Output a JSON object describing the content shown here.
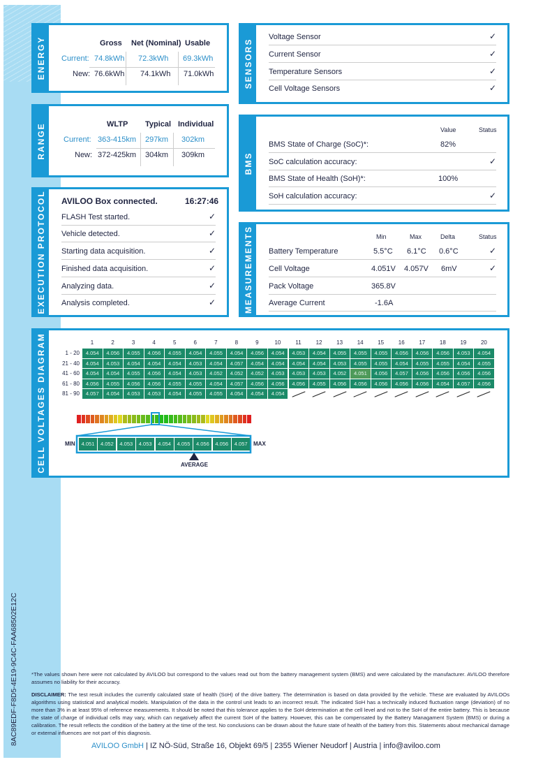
{
  "document_id": "8AC89EDF-F8D5-4E19-9C4C-FAA68502E12C",
  "energy": {
    "title": "ENERGY",
    "headers": [
      "Gross",
      "Net (Nominal)",
      "Usable"
    ],
    "current_label": "Current:",
    "new_label": "New:",
    "current": [
      "74.8kWh",
      "72.3kWh",
      "69.3kWh"
    ],
    "new": [
      "76.6kWh",
      "74.1kWh",
      "71.0kWh"
    ]
  },
  "range": {
    "title": "RANGE",
    "headers": [
      "WLTP",
      "Typical",
      "Individual"
    ],
    "current_label": "Current:",
    "new_label": "New:",
    "current": [
      "363-415km",
      "297km",
      "302km"
    ],
    "new": [
      "372-425km",
      "304km",
      "309km"
    ]
  },
  "sensors": {
    "title": "SENSORS",
    "items": [
      "Voltage Sensor",
      "Current Sensor",
      "Temperature Sensors",
      "Cell Voltage Sensors"
    ]
  },
  "bms": {
    "title": "BMS",
    "value_header": "Value",
    "status_header": "Status",
    "rows": [
      {
        "label": "BMS State of Charge (SoC)*:",
        "value": "82%",
        "ok": false
      },
      {
        "label": "SoC calculation accuracy:",
        "value": "",
        "ok": true
      },
      {
        "label": "BMS State of Health (SoH)*:",
        "value": "100%",
        "ok": false
      },
      {
        "label": "SoH calculation accuracy:",
        "value": "",
        "ok": true
      }
    ]
  },
  "protocol": {
    "title": "EXECUTION PROTOCOL",
    "header": "AVILOO Box connected.",
    "time": "16:27:46",
    "steps": [
      "FLASH Test started.",
      "Vehicle detected.",
      "Starting data acquisition.",
      "Finished data acquisition.",
      "Analyzing data.",
      "Analysis completed."
    ]
  },
  "measurements": {
    "title": "MEASUREMENTS",
    "headers": [
      "Min",
      "Max",
      "Delta",
      "Status"
    ],
    "rows": [
      {
        "label": "Battery Temperature",
        "min": "5.5°C",
        "max": "6.1°C",
        "delta": "0.6°C",
        "ok": true
      },
      {
        "label": "Cell Voltage",
        "min": "4.051V",
        "max": "4.057V",
        "delta": "6mV",
        "ok": true
      },
      {
        "label": "Pack Voltage",
        "min": "365.8V",
        "max": "",
        "delta": "",
        "ok": false
      },
      {
        "label": "Average Current",
        "min": "-1.6A",
        "max": "",
        "delta": "",
        "ok": false
      }
    ]
  },
  "cells": {
    "title": "CELL VOLTAGES DIAGRAM",
    "columns": [
      "1",
      "2",
      "3",
      "4",
      "5",
      "6",
      "7",
      "8",
      "9",
      "10",
      "11",
      "12",
      "13",
      "14",
      "15",
      "16",
      "17",
      "18",
      "19",
      "20"
    ],
    "row_labels": [
      "1 - 20",
      "21 - 40",
      "41 - 60",
      "61 - 80",
      "81 - 90"
    ],
    "rows": [
      [
        "4.054",
        "4.056",
        "4.055",
        "4.056",
        "4.055",
        "4.054",
        "4.055",
        "4.054",
        "4.056",
        "4.054",
        "4.053",
        "4.054",
        "4.055",
        "4.055",
        "4.055",
        "4.056",
        "4.056",
        "4.056",
        "4.053",
        "4.054"
      ],
      [
        "4.054",
        "4.053",
        "4.054",
        "4.054",
        "4.054",
        "4.053",
        "4.054",
        "4.057",
        "4.054",
        "4.054",
        "4.054",
        "4.054",
        "4.053",
        "4.055",
        "4.055",
        "4.054",
        "4.055",
        "4.055",
        "4.054",
        "4.055"
      ],
      [
        "4.054",
        "4.054",
        "4.055",
        "4.056",
        "4.054",
        "4.053",
        "4.052",
        "4.052",
        "4.052",
        "4.053",
        "4.053",
        "4.053",
        "4.052",
        "4.051",
        "4.056",
        "4.057",
        "4.056",
        "4.056",
        "4.056",
        "4.056"
      ],
      [
        "4.056",
        "4.055",
        "4.056",
        "4.056",
        "4.055",
        "4.055",
        "4.054",
        "4.057",
        "4.056",
        "4.056",
        "4.056",
        "4.055",
        "4.056",
        "4.056",
        "4.056",
        "4.056",
        "4.056",
        "4.054",
        "4.057",
        "4.056"
      ],
      [
        "4.057",
        "4.054",
        "4.053",
        "4.053",
        "4.054",
        "4.055",
        "4.055",
        "4.054",
        "4.054",
        "4.054"
      ]
    ],
    "scale_min_label": "MIN",
    "scale_max_label": "MAX",
    "average_label": "AVERAGE",
    "scale": [
      "4.051",
      "4.052",
      "4.053",
      "4.053",
      "4.054",
      "4.055",
      "4.056",
      "4.056",
      "4.057"
    ]
  },
  "footnote": "*The values shown here were not calculated by AVILOO but correspond to the values read out from the battery management system (BMS) and were calculated by the manufacturer. AVILOO therefore assumes no liability for their accuracy.",
  "disclaimer_label": "DISCLAIMER:",
  "disclaimer": " The test result includes the currently calculated state of health (SoH) of the drive battery. The determination is based on data provided by the vehicle. These are evaluated by AVILOOs algorithms using statistical and analytical models. Manipulation of the data in the control unit leads to an incorrect result. The indicated SoH has a technically induced fluctuation range (deviation) of no more than 3% in at least 95% of reference measurements. It should be noted that this tolerance applies to the SoH determination at the cell level and not to the SoH of the entire battery. This is because the state of charge of individual cells may vary, which can negatively affect the current SoH of the battery. However, this can be compensated by the Battery Managament System (BMS) or during a calibration. The result reflects the condition of the battery at the time of the test. No conclusions can be drawn about the future state of health of the battery from this. Statements about mechanical damage or external influences are not part of this diagnosis.",
  "company": "AVILOO GmbH",
  "address": " | IZ NÖ-Süd, Straße 16, Objekt 69/5 | 2355 Wiener Neudorf | Austria | info@aviloo.com",
  "colors": {
    "accent": "#1a9ad6",
    "cell_green": "#1b8a68",
    "strip": "#a8dcf3"
  }
}
